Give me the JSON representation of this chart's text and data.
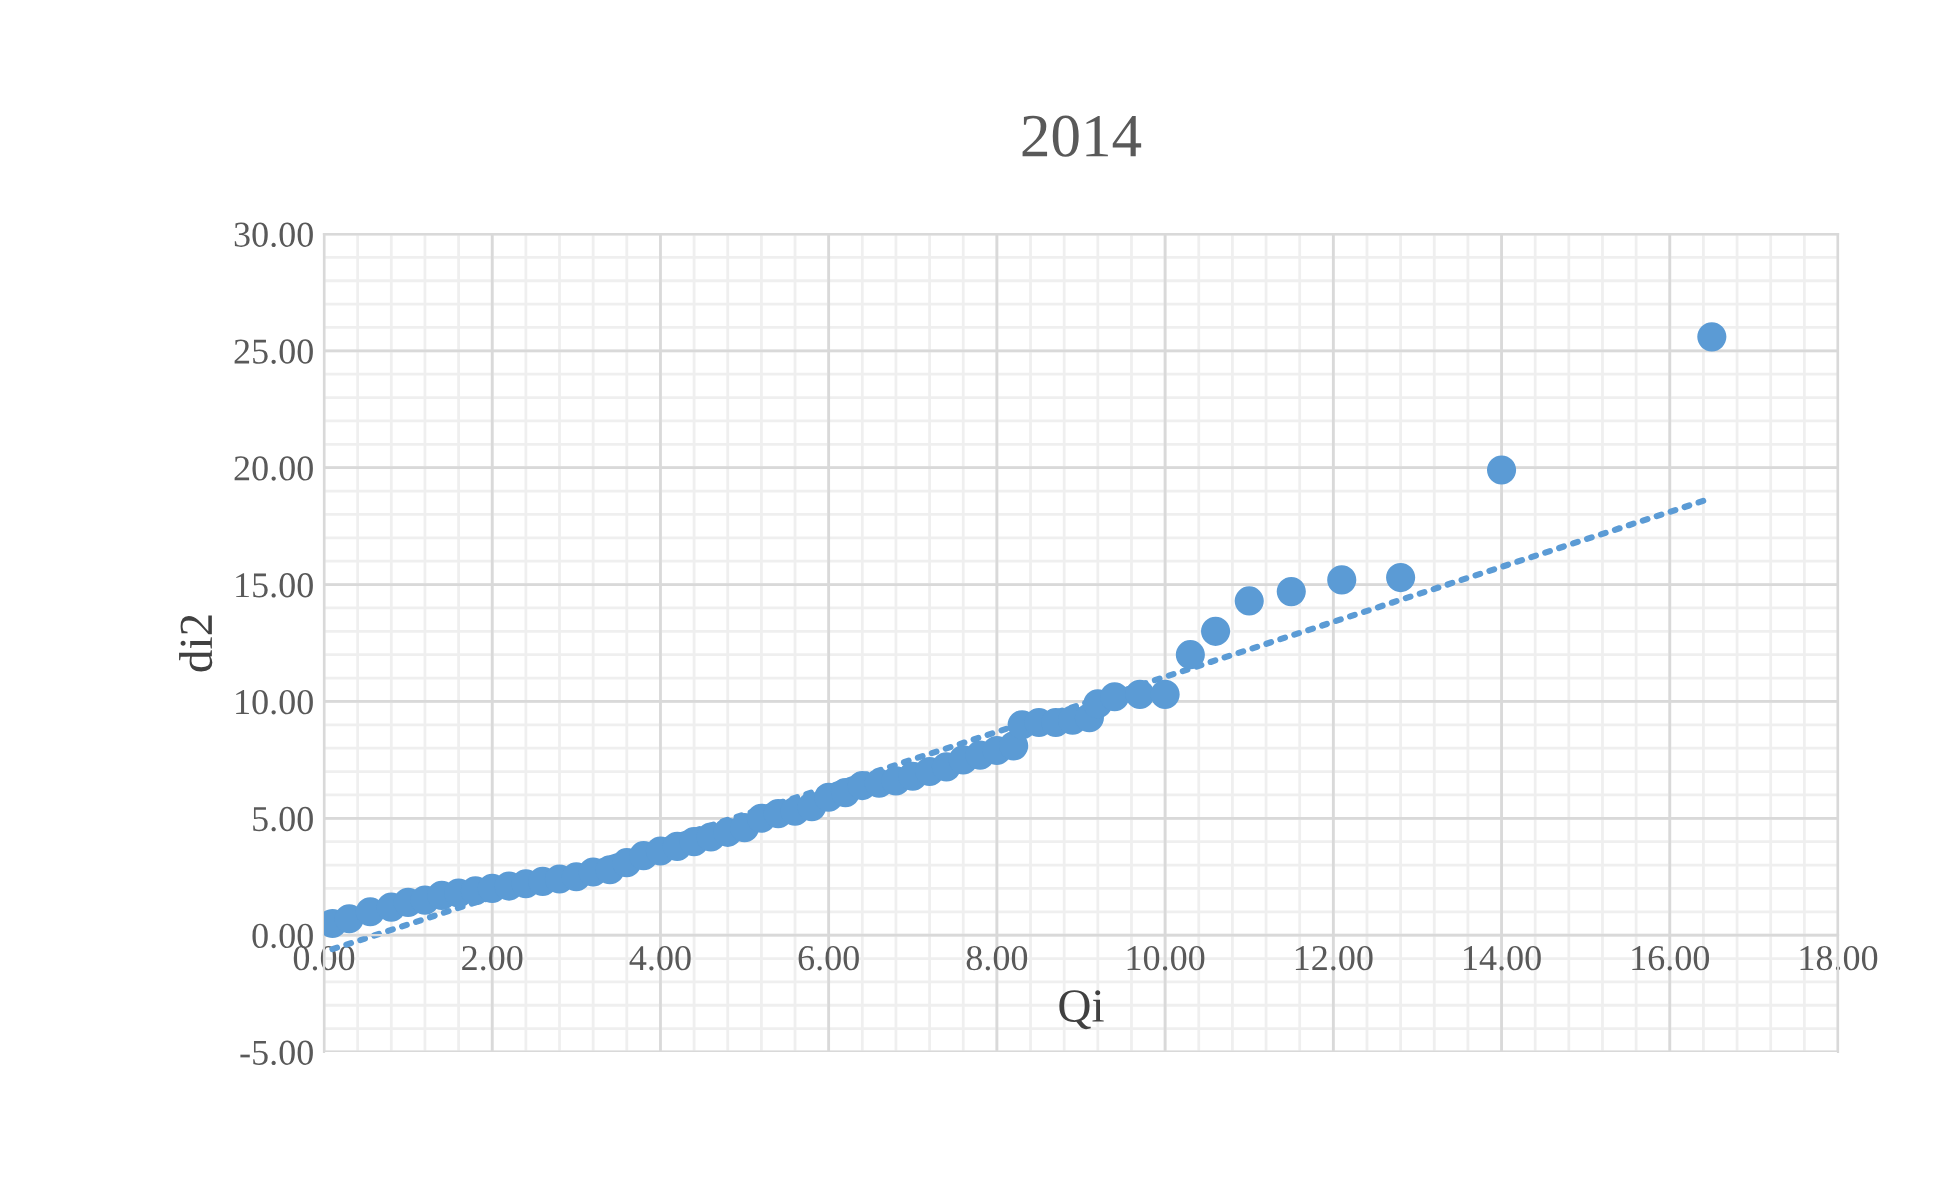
{
  "chart_data": {
    "type": "scatter",
    "title": "2014",
    "xlabel": "Qi",
    "ylabel": "di2",
    "xlim": [
      0,
      18
    ],
    "xticks": [
      {
        "value": 0,
        "label": "0.00"
      },
      {
        "value": 2,
        "label": "2.00"
      },
      {
        "value": 4,
        "label": "4.00"
      },
      {
        "value": 6,
        "label": "6.00"
      },
      {
        "value": 8,
        "label": "8.00"
      },
      {
        "value": 10,
        "label": "10.00"
      },
      {
        "value": 12,
        "label": "12.00"
      },
      {
        "value": 14,
        "label": "14.00"
      },
      {
        "value": 16,
        "label": "16.00"
      },
      {
        "value": 18,
        "label": "18.00"
      }
    ],
    "ylim": [
      -5,
      30
    ],
    "yticks": [
      {
        "value": -5,
        "label": "-5.00"
      },
      {
        "value": 0,
        "label": "0.00"
      },
      {
        "value": 5,
        "label": "5.00"
      },
      {
        "value": 10,
        "label": "10.00"
      },
      {
        "value": 15,
        "label": "15.00"
      },
      {
        "value": 20,
        "label": "20.00"
      },
      {
        "value": 25,
        "label": "25.00"
      },
      {
        "value": 30,
        "label": "30.00"
      }
    ],
    "grid": true,
    "series": [
      {
        "color": "#5b9bd5",
        "marker": "circle",
        "x": [
          0.1,
          0.3,
          0.55,
          0.8,
          1.0,
          1.2,
          1.4,
          1.6,
          1.8,
          2.0,
          2.2,
          2.4,
          2.6,
          2.8,
          3.0,
          3.2,
          3.4,
          3.6,
          3.8,
          4.0,
          4.2,
          4.4,
          4.6,
          4.8,
          5.0,
          5.2,
          5.4,
          5.6,
          5.8,
          6.0,
          6.2,
          6.4,
          6.6,
          6.8,
          7.0,
          7.2,
          7.4,
          7.6,
          7.8,
          8.0,
          8.2,
          8.3,
          8.5,
          8.7,
          8.9,
          9.1,
          9.2,
          9.4,
          9.7,
          10.0,
          10.3,
          10.6,
          11.0,
          11.5,
          12.1,
          12.8,
          14.0,
          16.5
        ],
        "values": [
          0.5,
          0.7,
          1.0,
          1.2,
          1.4,
          1.5,
          1.7,
          1.8,
          1.9,
          2.0,
          2.1,
          2.2,
          2.3,
          2.4,
          2.5,
          2.7,
          2.8,
          3.1,
          3.4,
          3.6,
          3.8,
          4.0,
          4.2,
          4.4,
          4.6,
          5.0,
          5.2,
          5.3,
          5.5,
          5.9,
          6.1,
          6.4,
          6.5,
          6.6,
          6.8,
          7.0,
          7.2,
          7.5,
          7.7,
          7.9,
          8.1,
          9.0,
          9.1,
          9.1,
          9.2,
          9.3,
          9.9,
          10.2,
          10.3,
          10.3,
          12.0,
          13.0,
          14.3,
          14.7,
          15.2,
          15.3,
          19.9,
          25.6
        ]
      },
      {
        "type": "line",
        "color": "#5b9bd5",
        "line_style": "dotted",
        "x": [
          0.1,
          16.5
        ],
        "values": [
          -0.6,
          18.7
        ]
      }
    ]
  }
}
